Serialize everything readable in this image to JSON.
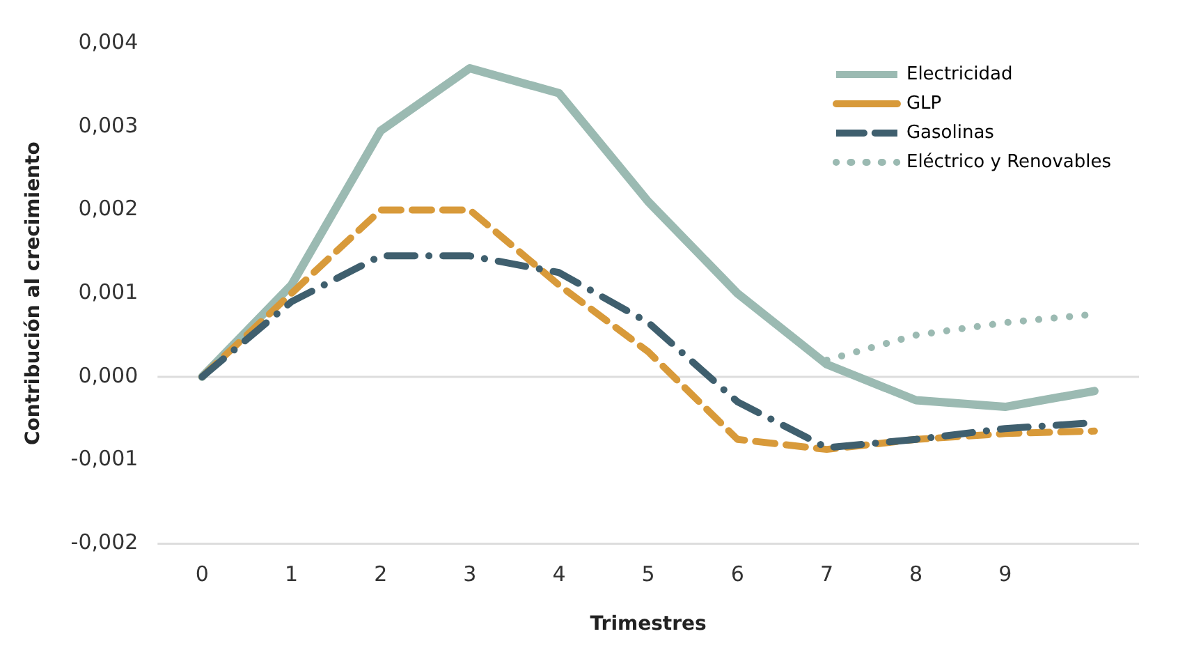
{
  "chart_data": {
    "type": "line",
    "xlabel": "Trimestres",
    "ylabel": "Contribución al crecimiento",
    "categories": [
      "0",
      "1",
      "2",
      "3",
      "4",
      "5",
      "6",
      "7",
      "8",
      "9",
      null
    ],
    "series": [
      {
        "name": "Electricidad",
        "color": "#9bbab2",
        "line_style": "solid",
        "values": [
          0,
          0.0011,
          0.00295,
          0.0037,
          0.0034,
          0.0021,
          0.001,
          0.00015,
          -0.00028,
          -0.00036,
          -0.00017
        ]
      },
      {
        "name": "GLP",
        "color": "#d89a3a",
        "line_style": "dashed",
        "values": [
          0,
          0.001,
          0.002,
          0.002,
          0.0011,
          0.0003,
          -0.00075,
          -0.00087,
          -0.00075,
          -0.00068,
          -0.00065
        ]
      },
      {
        "name": "Gasolinas",
        "color": "#3f5f6e",
        "line_style": "dashed",
        "values": [
          0,
          0.0009,
          0.00145,
          0.00145,
          0.00125,
          0.00065,
          -0.0003,
          -0.00085,
          -0.00075,
          -0.00062,
          -0.00055
        ]
      },
      {
        "name": "Eléctrico y Renovables",
        "color": "#9bbab2",
        "line_style": "dotted",
        "values": [
          null,
          null,
          null,
          null,
          null,
          null,
          null,
          0.0002,
          0.0005,
          0.00065,
          0.00075
        ]
      }
    ],
    "ylim": [
      -0.002,
      0.004
    ],
    "yticks": [
      {
        "value": -0.002,
        "label": "-0,002"
      },
      {
        "value": -0.001,
        "label": "-0,001"
      },
      {
        "value": 0,
        "label": "0,000"
      },
      {
        "value": 0.001,
        "label": "0,001"
      },
      {
        "value": 0.002,
        "label": "0,002"
      },
      {
        "value": 0.003,
        "label": "0,003"
      },
      {
        "value": 0.004,
        "label": "0,004"
      }
    ],
    "ref_lines": [
      {
        "axis": "y",
        "value": 0,
        "color": "#dddddd"
      }
    ],
    "grid": false,
    "legend": "top right",
    "marker": "none"
  }
}
